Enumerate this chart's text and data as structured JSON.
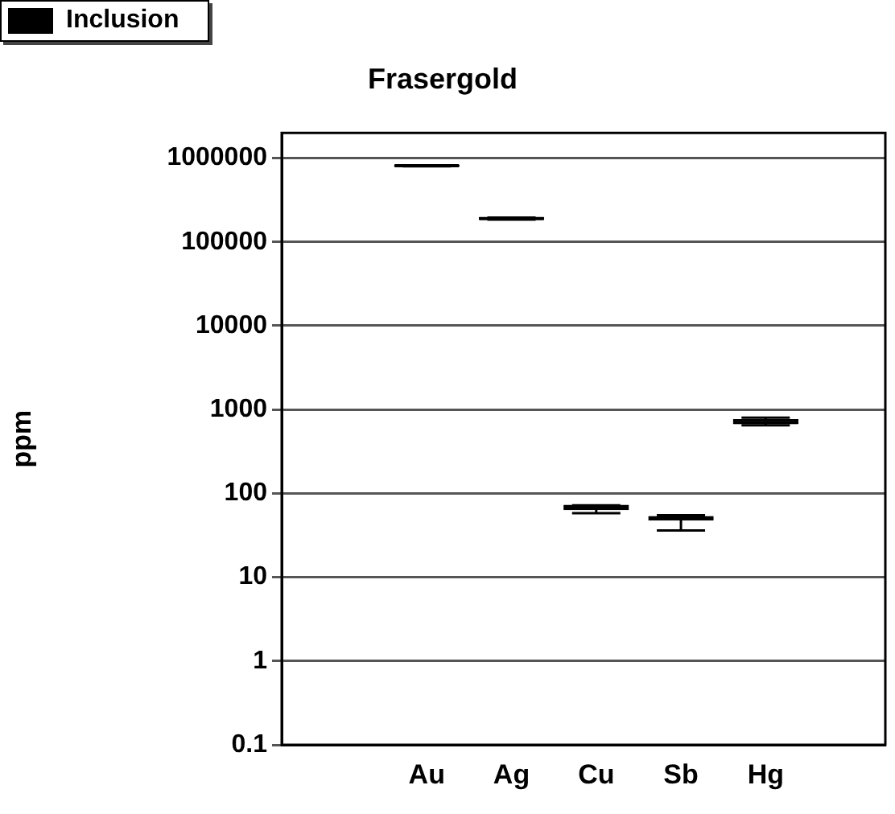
{
  "chart_data": {
    "type": "box",
    "title": "Frasergold",
    "ylabel": "ppm",
    "categories": [
      "Au",
      "Ag",
      "Cu",
      "Sb",
      "Hg"
    ],
    "series": [
      {
        "name": "Inclusion",
        "color": "#000000",
        "boxes": [
          {
            "low": 800000,
            "q1": 800000,
            "median": 810000,
            "q3": 820000,
            "high": 820000
          },
          {
            "low": 185000,
            "q1": 185000,
            "median": 190000,
            "q3": 195000,
            "high": 195000
          },
          {
            "low": 58,
            "q1": 64,
            "median": 68,
            "q3": 72,
            "high": 72
          },
          {
            "low": 36,
            "q1": 48,
            "median": 50,
            "q3": 53,
            "high": 55
          },
          {
            "low": 650,
            "q1": 680,
            "median": 700,
            "q3": 760,
            "high": 800
          }
        ]
      }
    ],
    "log": "y",
    "ylim": [
      0.1,
      2000000
    ],
    "yticks": [
      0.1,
      1,
      10,
      100,
      1000,
      10000,
      100000,
      1000000
    ],
    "grid": "y",
    "legend": "top left"
  }
}
